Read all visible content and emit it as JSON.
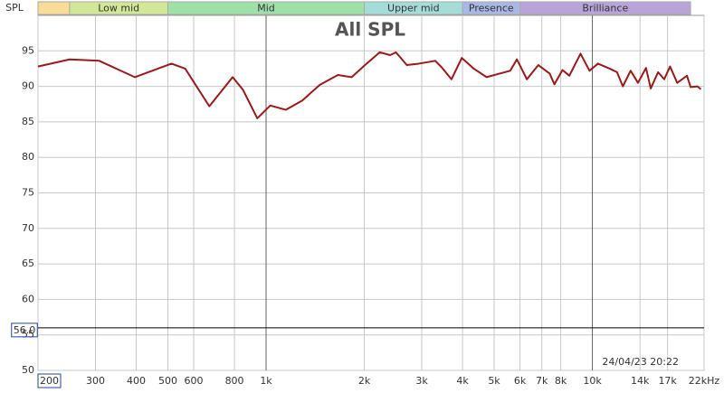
{
  "chart_data": {
    "type": "line",
    "title": "All SPL",
    "y_label": "SPL",
    "timestamp": "24/04/23 20:22",
    "log_x": true,
    "grid": true,
    "xlim": [
      200,
      22000
    ],
    "ylim": [
      50,
      100
    ],
    "xticks": [
      200,
      300,
      400,
      500,
      600,
      800,
      {
        "value": 1000,
        "label": "1k"
      },
      {
        "value": 2000,
        "label": "2k"
      },
      {
        "value": 3000,
        "label": "3k"
      },
      {
        "value": 4000,
        "label": "4k"
      },
      {
        "value": 5000,
        "label": "5k"
      },
      {
        "value": 6000,
        "label": "6k"
      },
      {
        "value": 7000,
        "label": "7k"
      },
      {
        "value": 8000,
        "label": "8k"
      },
      {
        "value": 10000,
        "label": "10k"
      },
      {
        "value": 14000,
        "label": "14k"
      },
      {
        "value": 17000,
        "label": "17k"
      },
      {
        "value": 22000,
        "label": "22kHz"
      }
    ],
    "yticks": [
      50,
      55,
      60,
      65,
      70,
      75,
      80,
      85,
      90,
      95
    ],
    "marker": {
      "value": 56,
      "label": "56.0"
    },
    "bands": [
      {
        "name": null,
        "start": 200,
        "end": 250,
        "color": "#f8dc98"
      },
      {
        "name": "Low mid",
        "start": 250,
        "end": 500,
        "color": "#d2e896"
      },
      {
        "name": "Mid",
        "start": 500,
        "end": 2000,
        "color": "#9ee0a8"
      },
      {
        "name": "Upper mid",
        "start": 2000,
        "end": 4000,
        "color": "#a4dcd8"
      },
      {
        "name": "Presence",
        "start": 4000,
        "end": 6000,
        "color": "#a8b8e4"
      },
      {
        "name": "Brilliance",
        "start": 6000,
        "end": 20000,
        "color": "#b8a4d8"
      }
    ],
    "x": [
      200,
      250,
      308,
      396,
      513,
      565,
      670,
      790,
      850,
      940,
      1030,
      1150,
      1290,
      1460,
      1660,
      1830,
      2010,
      2230,
      2400,
      2500,
      2700,
      2940,
      3300,
      3450,
      3700,
      3980,
      4330,
      4740,
      5200,
      5600,
      5870,
      6300,
      6830,
      7400,
      7650,
      8100,
      8500,
      9200,
      9800,
      10400,
      11300,
      11900,
      12400,
      13100,
      13800,
      14600,
      15100,
      15900,
      16600,
      17300,
      18200,
      19500,
      20000,
      21000,
      21500
    ],
    "series": [
      {
        "name": "All SPL",
        "color": "#a01818",
        "values": [
          92.8,
          93.8,
          93.6,
          91.3,
          93.2,
          92.5,
          87.2,
          91.3,
          89.5,
          85.5,
          87.3,
          86.7,
          88,
          90.2,
          91.6,
          91.3,
          93,
          94.8,
          94.4,
          94.8,
          93,
          93.2,
          93.6,
          92.7,
          91,
          94,
          92.5,
          91.3,
          91.8,
          92.2,
          93.8,
          91,
          93,
          91.8,
          90.3,
          92.3,
          91.5,
          94.6,
          92.2,
          93.2,
          92.5,
          92,
          90,
          92.2,
          90.5,
          92.6,
          89.7,
          92,
          91,
          92.8,
          90.5,
          91.5,
          89.9,
          90,
          89.6
        ]
      }
    ]
  }
}
